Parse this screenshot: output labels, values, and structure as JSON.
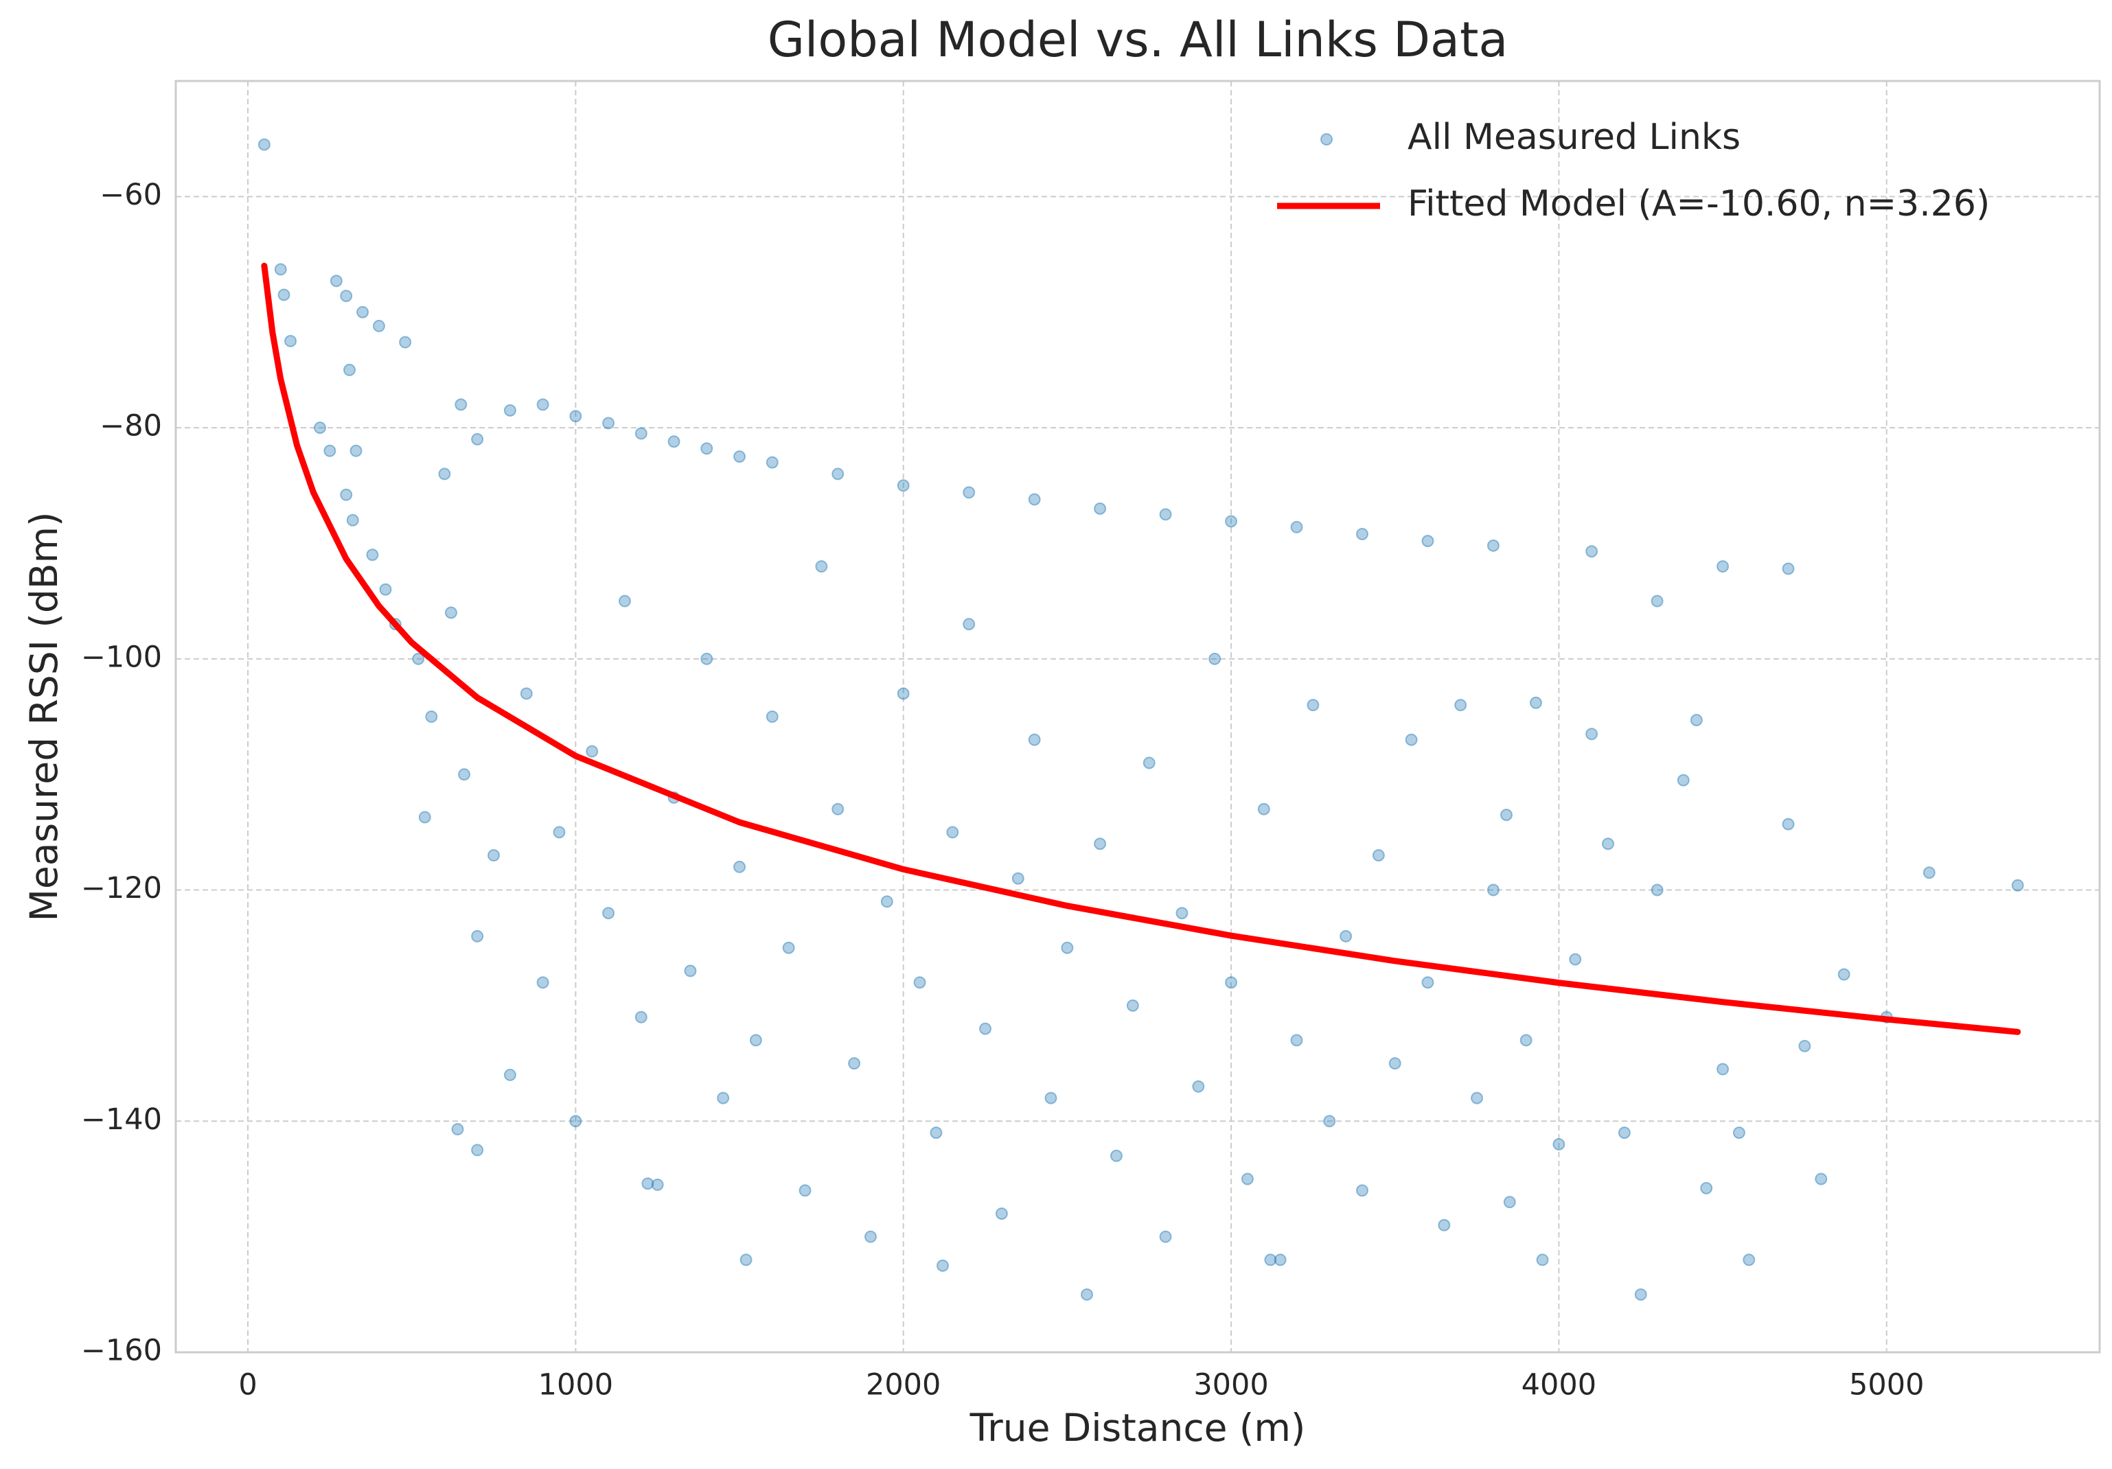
{
  "chart_data": {
    "type": "scatter",
    "title": "Global Model vs. All Links Data",
    "x_label": "True Distance (m)",
    "y_label": "Measured RSSI (dBm)",
    "xlim": [
      -220,
      5650
    ],
    "ylim": [
      -160,
      -50
    ],
    "xticks": [
      0,
      1000,
      2000,
      3000,
      4000,
      5000
    ],
    "yticks": [
      {
        "value": -60,
        "label": "−60"
      },
      {
        "value": -80,
        "label": "−80"
      },
      {
        "value": -100,
        "label": "−100"
      },
      {
        "value": -120,
        "label": "−120"
      },
      {
        "value": -140,
        "label": "−140"
      },
      {
        "value": -160,
        "label": "−160"
      }
    ],
    "grid": true,
    "legend": "upper right",
    "series": [
      {
        "name": "All Measured Links",
        "type": "scatter",
        "color": "#1f77b4",
        "x": [
          50,
          100,
          110,
          130,
          270,
          300,
          350,
          400,
          480,
          220,
          250,
          310,
          330,
          300,
          320,
          380,
          420,
          450,
          520,
          540,
          560,
          600,
          650,
          700,
          800,
          900,
          1000,
          1100,
          1200,
          1300,
          1400,
          1500,
          1600,
          1800,
          2000,
          2200,
          2400,
          2600,
          2800,
          3000,
          3200,
          3400,
          3600,
          3800,
          4100,
          4500,
          4700,
          4300,
          620,
          660,
          700,
          750,
          800,
          850,
          900,
          950,
          1000,
          1050,
          1100,
          1150,
          1200,
          1250,
          1300,
          1350,
          1400,
          1450,
          1500,
          1520,
          1550,
          1600,
          1650,
          1700,
          1750,
          1800,
          1850,
          1900,
          1950,
          2000,
          2050,
          2100,
          2150,
          2200,
          2250,
          2300,
          2350,
          2400,
          2450,
          2500,
          2560,
          2600,
          2650,
          2700,
          2750,
          2800,
          2850,
          2900,
          2950,
          3000,
          3050,
          3100,
          3150,
          3200,
          3250,
          3300,
          3350,
          3400,
          3450,
          3500,
          3550,
          3600,
          3650,
          3700,
          3750,
          3800,
          3850,
          3900,
          3950,
          4000,
          4050,
          4100,
          4150,
          4200,
          4250,
          4300,
          4380,
          4420,
          4450,
          4500,
          4550,
          4580,
          4700,
          4750,
          4800,
          4870,
          5000,
          5130,
          5400,
          3930,
          3840,
          700,
          640,
          1220,
          2120,
          3120
        ],
        "values": [
          -55.5,
          -66.3,
          -68.5,
          -72.5,
          -67.3,
          -68.6,
          -70,
          -71.2,
          -72.6,
          -80,
          -82,
          -75,
          -82,
          -85.8,
          -88,
          -91,
          -94,
          -97,
          -100,
          -113.7,
          -105,
          -84,
          -78,
          -81,
          -78.5,
          -78,
          -79,
          -79.6,
          -80.5,
          -81.2,
          -81.8,
          -82.5,
          -83,
          -84,
          -85,
          -85.6,
          -86.2,
          -87,
          -87.5,
          -88.1,
          -88.6,
          -89.2,
          -89.8,
          -90.2,
          -90.7,
          -92,
          -92.2,
          -95,
          -96,
          -110,
          -124,
          -117,
          -136,
          -103,
          -128,
          -115,
          -140,
          -108,
          -122,
          -95,
          -131,
          -145.5,
          -112,
          -127,
          -100,
          -138,
          -118,
          -152,
          -133,
          -105,
          -125,
          -146,
          -92,
          -113,
          -135,
          -150,
          -121,
          -103,
          -128,
          -141,
          -115,
          -97,
          -132,
          -148,
          -119,
          -107,
          -138,
          -125,
          -155,
          -116,
          -143,
          -130,
          -109,
          -150,
          -122,
          -137,
          -100,
          -128,
          -145,
          -113,
          -152,
          -133,
          -104,
          -140,
          -124,
          -146,
          -117,
          -135,
          -107,
          -128,
          -149,
          -104,
          -138,
          -120,
          -147,
          -133,
          -152,
          -142,
          -126,
          -106.5,
          -116,
          -141,
          -155,
          -120,
          -110.5,
          -105.3,
          -145.8,
          -135.5,
          -141,
          -152,
          -114.3,
          -133.5,
          -145,
          -127.3,
          -131,
          -118.5,
          -119.6,
          -103.8,
          -113.5,
          -142.5,
          -140.7,
          -145.4,
          -152.5,
          -152
        ]
      },
      {
        "name": "Fitted Model (A=-10.60, n=3.26)",
        "type": "line",
        "color": "#ff0000",
        "x": [
          50,
          75,
          100,
          150,
          200,
          300,
          400,
          500,
          700,
          1000,
          1500,
          2000,
          2500,
          3000,
          3500,
          4000,
          4500,
          5000,
          5400
        ],
        "values": [
          -65.99,
          -71.73,
          -75.8,
          -81.54,
          -85.61,
          -91.35,
          -95.43,
          -98.59,
          -103.35,
          -108.4,
          -114.14,
          -118.21,
          -121.37,
          -123.95,
          -126.14,
          -128.03,
          -129.69,
          -131.19,
          -132.28
        ]
      }
    ]
  }
}
